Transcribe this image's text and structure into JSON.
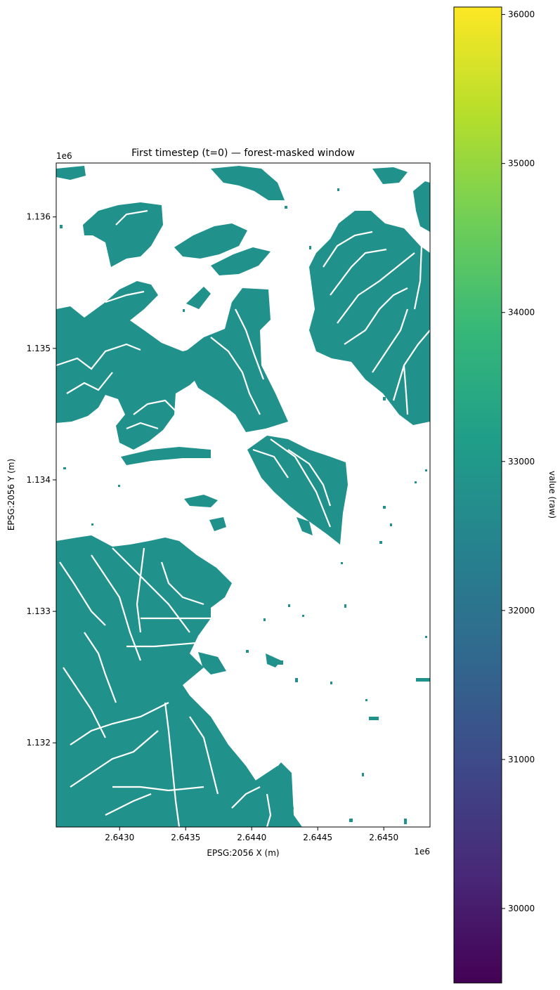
{
  "chart_data": {
    "type": "heatmap",
    "title": "First timestep (t=0) — forest-masked window",
    "xlabel": "EPSG:2056 X (m)",
    "ylabel": "EPSG:2056 Y (m)",
    "x_offset_label": "1e6",
    "y_offset_label": "1e6",
    "xlim": [
      2.64252,
      2.64535
    ],
    "ylim": [
      1.13136,
      1.13641
    ],
    "x_ticks": [
      2.643,
      2.6435,
      2.644,
      2.6445,
      2.645
    ],
    "x_tick_labels": [
      "2.6430",
      "2.6435",
      "2.6440",
      "2.6445",
      "2.6450"
    ],
    "y_ticks": [
      1.132,
      1.133,
      1.134,
      1.135,
      1.136
    ],
    "y_tick_labels": [
      "1.132",
      "1.133",
      "1.134",
      "1.135",
      "1.136"
    ],
    "forest_value": 32900,
    "forest_color": "#21918c",
    "grid": false,
    "colorbar": {
      "label": "value (raw)",
      "range": [
        29500,
        36050
      ],
      "ticks": [
        30000,
        31000,
        32000,
        33000,
        34000,
        35000,
        36000
      ],
      "tick_labels": [
        "30000",
        "31000",
        "32000",
        "33000",
        "34000",
        "35000",
        "36000"
      ],
      "colormap": "viridis",
      "colors": [
        "#440154",
        "#482878",
        "#3e4989",
        "#31688e",
        "#26828e",
        "#1f9e89",
        "#35b779",
        "#6ece58",
        "#b5de2b",
        "#fde725"
      ]
    }
  }
}
